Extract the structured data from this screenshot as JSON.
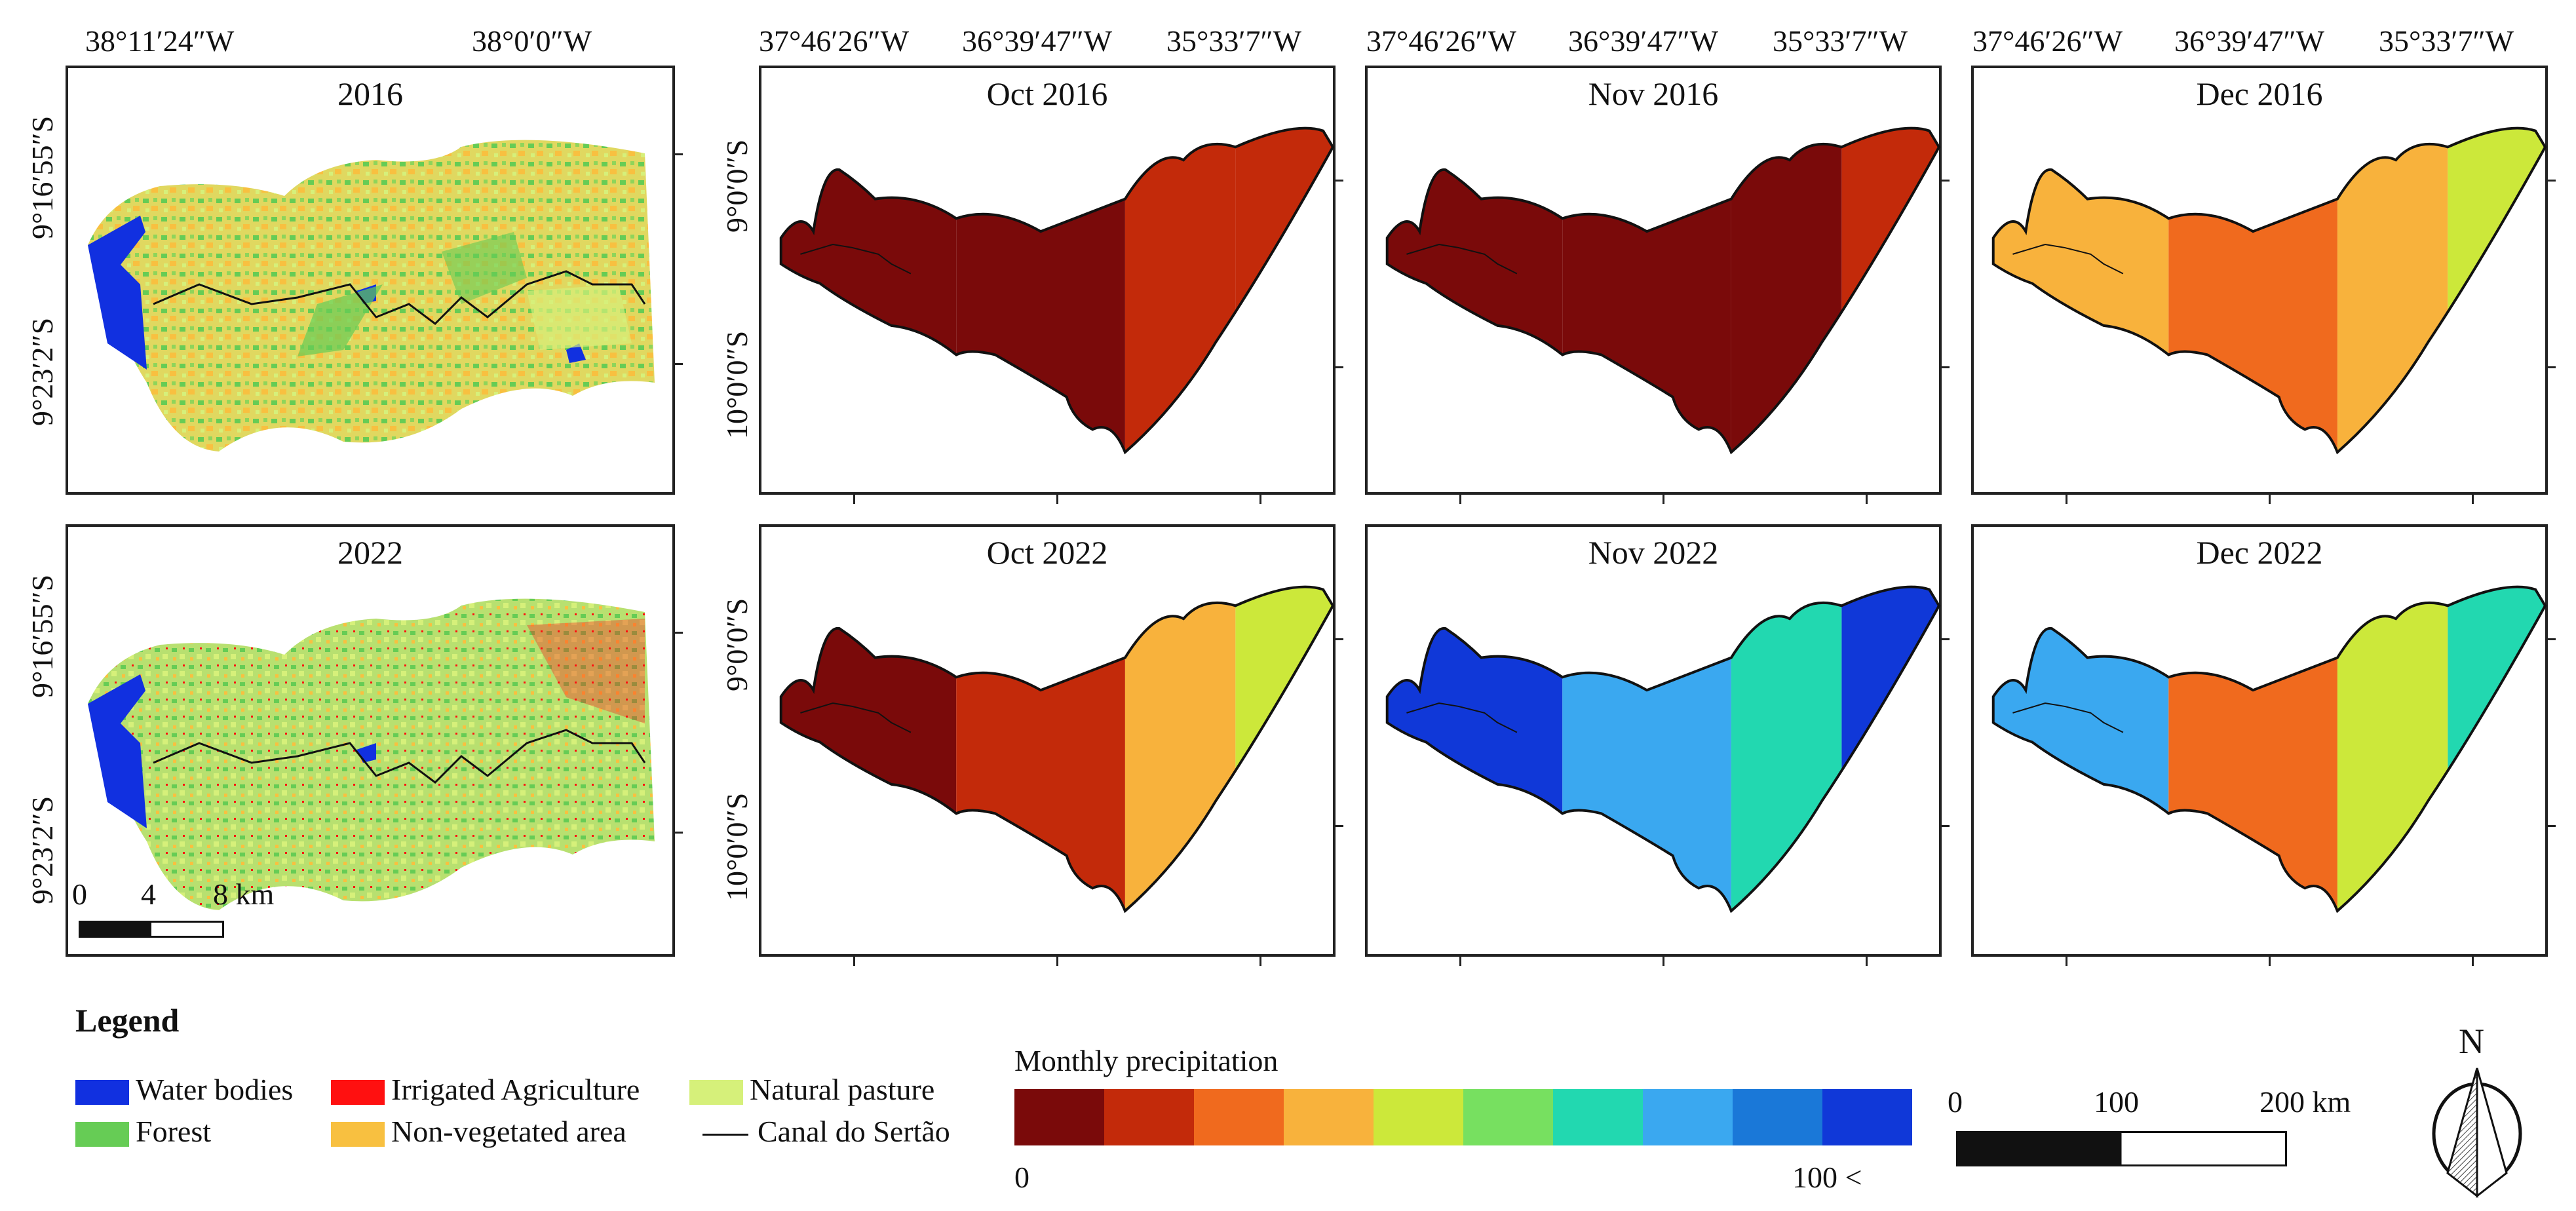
{
  "top_lon_labels_left": [
    "38°11′24″W",
    "38°0′0″W"
  ],
  "top_lon_labels_right": [
    "37°46′26″W",
    "36°39′47″W",
    "35°33′7″W"
  ],
  "lat_labels_left": [
    "9°16′55″S",
    "9°23′2″S"
  ],
  "lat_labels_right": [
    "9°0′0″S",
    "10°0′0″S"
  ],
  "landcover_panels": [
    {
      "title": "2016"
    },
    {
      "title": "2022"
    }
  ],
  "precip_panels": [
    {
      "title": "Oct 2016",
      "classes": [
        0,
        0,
        1,
        1
      ]
    },
    {
      "title": "Nov 2016",
      "classes": [
        0,
        0,
        0,
        1
      ]
    },
    {
      "title": "Dec 2016",
      "classes": [
        3,
        2,
        3,
        4
      ]
    },
    {
      "title": "Oct 2022",
      "classes": [
        0,
        1,
        3,
        4
      ]
    },
    {
      "title": "Nov 2022",
      "classes": [
        9,
        7,
        6,
        9
      ]
    },
    {
      "title": "Dec 2022",
      "classes": [
        7,
        2,
        4,
        6
      ]
    }
  ],
  "scalebar_small": {
    "labels": [
      "0",
      "4",
      "8 km"
    ]
  },
  "legend": {
    "title": "Legend",
    "items": [
      {
        "label": "Water bodies",
        "color": "#1130e0"
      },
      {
        "label": "Forest",
        "color": "#66cc55"
      },
      {
        "label": "Irrigated Agriculture",
        "color": "#ff1010"
      },
      {
        "label": "Non-vegetated area",
        "color": "#f8c040"
      },
      {
        "label": "Natural pasture",
        "color": "#d6f07a"
      },
      {
        "label": "Canal do Sertão",
        "color": "#111111"
      }
    ]
  },
  "precipitation_scale": {
    "title": "Monthly precipitation",
    "min_label": "0",
    "max_label": "100 <",
    "colors": [
      "#7a0a0a",
      "#c32a0a",
      "#f06a1e",
      "#f8b23c",
      "#cce83a",
      "#77e060",
      "#22d8b0",
      "#3aa8f0",
      "#1a78d8",
      "#1038d8"
    ]
  },
  "scalebar_large": {
    "labels": [
      "0",
      "100",
      "200 km"
    ]
  },
  "north_arrow": {
    "label": "N",
    "icon": "north-arrow-icon"
  }
}
